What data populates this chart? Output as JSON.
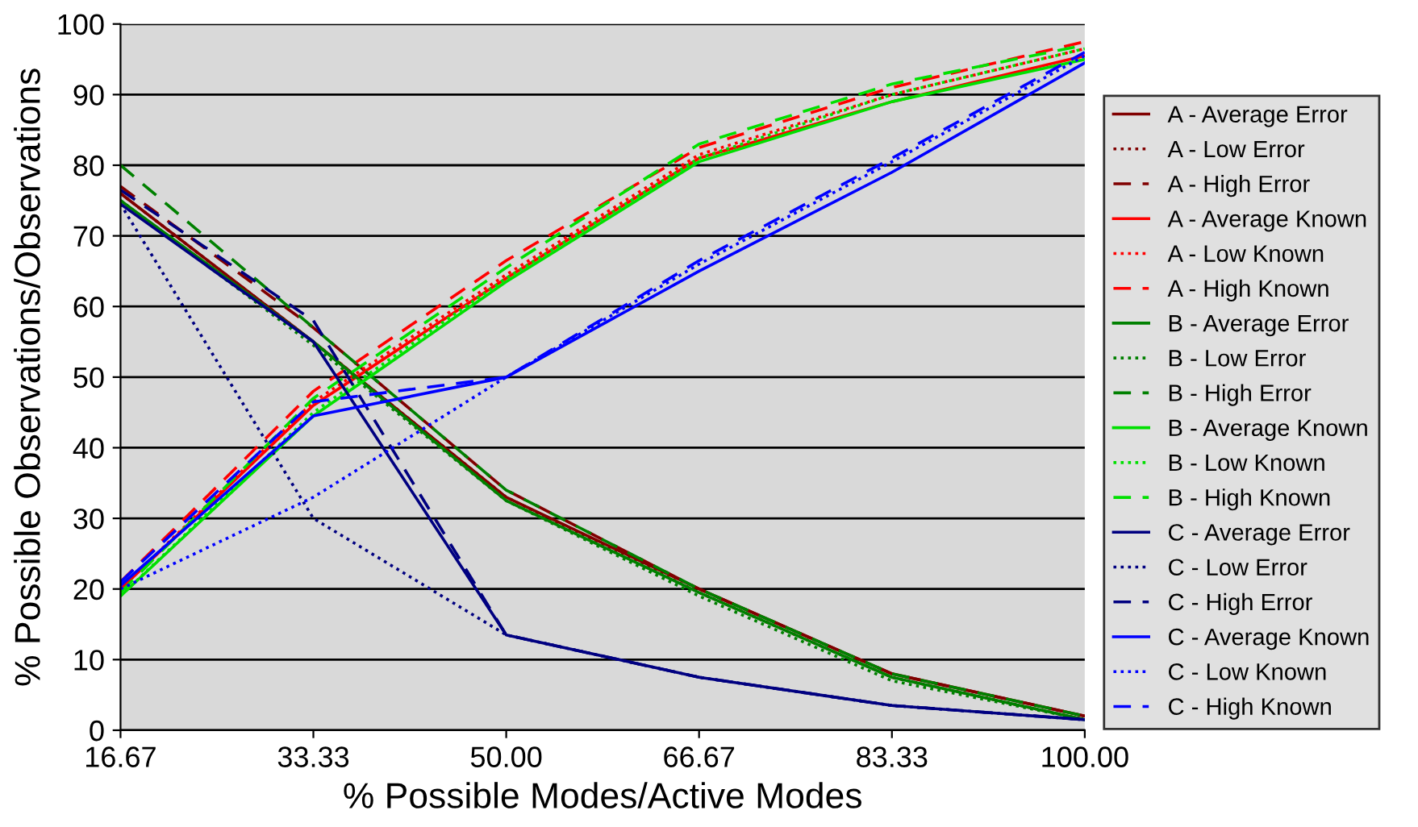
{
  "chart_data": {
    "type": "line",
    "xlabel": "% Possible Modes/Active Modes",
    "ylabel": "% Possible Observations/Observations",
    "categories": [
      "16.67",
      "33.33",
      "50.00",
      "66.67",
      "83.33",
      "100.00"
    ],
    "ylim": [
      0,
      100
    ],
    "yticks": [
      0,
      10,
      20,
      30,
      40,
      50,
      60,
      70,
      80,
      90,
      100
    ],
    "grid": "y",
    "legend": "right",
    "marker": "none",
    "series": [
      {
        "name": "A - Average Error",
        "color": "#800000",
        "line_style": "solid",
        "values": [
          76,
          55,
          33,
          20,
          8,
          2
        ]
      },
      {
        "name": "A - Low Error",
        "color": "#800000",
        "line_style": "dotted",
        "values": [
          76,
          55,
          33,
          19.5,
          7.5,
          1.5
        ]
      },
      {
        "name": "A - High Error",
        "color": "#800000",
        "line_style": "dashed",
        "values": [
          77,
          57,
          34,
          20,
          8,
          2
        ]
      },
      {
        "name": "A - Average Known",
        "color": "#ff0000",
        "line_style": "solid",
        "values": [
          20,
          46,
          64,
          81,
          89,
          95.5
        ]
      },
      {
        "name": "A - Low Known",
        "color": "#ff0000",
        "line_style": "dotted",
        "values": [
          20,
          46.5,
          64.5,
          81.5,
          90,
          96.5
        ]
      },
      {
        "name": "A - High Known",
        "color": "#ff0000",
        "line_style": "dashed",
        "values": [
          21,
          48,
          66.5,
          82.5,
          91,
          97.5
        ]
      },
      {
        "name": "B - Average Error",
        "color": "#008000",
        "line_style": "solid",
        "values": [
          75,
          55,
          32.5,
          19.5,
          7.5,
          1.5
        ]
      },
      {
        "name": "B - Low Error",
        "color": "#008000",
        "line_style": "dotted",
        "values": [
          75,
          54.5,
          32.5,
          19,
          7,
          1.5
        ]
      },
      {
        "name": "B - High Error",
        "color": "#008000",
        "line_style": "dashed",
        "values": [
          80,
          57,
          34,
          20,
          8,
          2
        ]
      },
      {
        "name": "B - Average Known",
        "color": "#00e000",
        "line_style": "solid",
        "values": [
          19,
          44.5,
          63.5,
          80.5,
          89,
          95
        ]
      },
      {
        "name": "B - Low Known",
        "color": "#00e000",
        "line_style": "dotted",
        "values": [
          19,
          45,
          64,
          81,
          90,
          96.5
        ]
      },
      {
        "name": "B - High Known",
        "color": "#00e000",
        "line_style": "dashed",
        "values": [
          19.5,
          47,
          65.5,
          83,
          91.5,
          97
        ]
      },
      {
        "name": "C - Average Error",
        "color": "#000080",
        "line_style": "solid",
        "values": [
          74.5,
          55,
          13.5,
          7.5,
          3.5,
          1.5
        ]
      },
      {
        "name": "C - Low Error",
        "color": "#000080",
        "line_style": "dotted",
        "values": [
          74.5,
          30,
          13.5,
          7.5,
          3.5,
          1.5
        ]
      },
      {
        "name": "C - High Error",
        "color": "#000080",
        "line_style": "dashed",
        "values": [
          76.5,
          58,
          13.5,
          7.5,
          3.5,
          1.5
        ]
      },
      {
        "name": "C - Average Known",
        "color": "#0000ff",
        "line_style": "solid",
        "values": [
          20.5,
          44.5,
          50,
          65,
          79,
          94.5
        ]
      },
      {
        "name": "C - Low Known",
        "color": "#0000ff",
        "line_style": "dotted",
        "values": [
          20,
          33,
          50,
          66,
          80.5,
          95.5
        ]
      },
      {
        "name": "C - High Known",
        "color": "#0000ff",
        "line_style": "dashed",
        "values": [
          21,
          46.5,
          50,
          66.5,
          81,
          96
        ]
      }
    ]
  }
}
